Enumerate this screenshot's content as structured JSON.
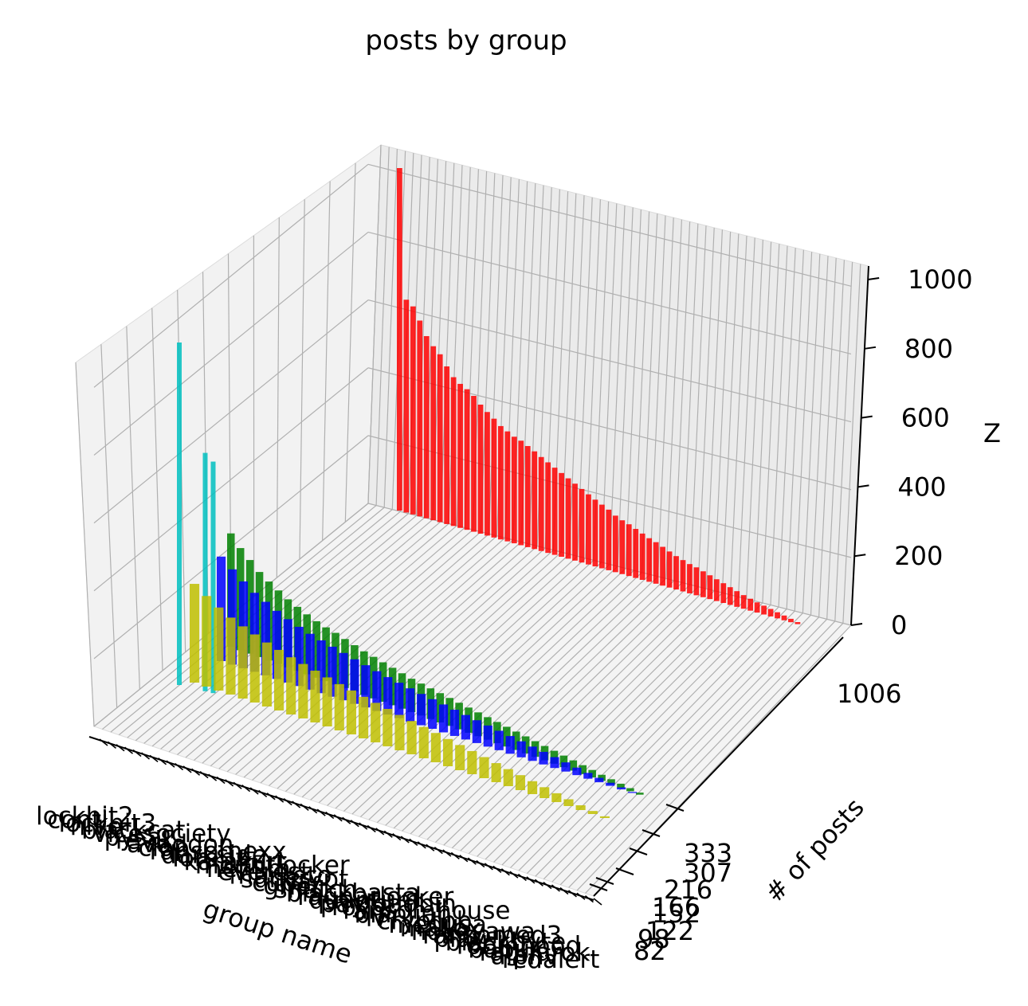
{
  "chart_data": {
    "type": "bar",
    "subtype": "3d-bar",
    "title": "posts by group",
    "xlabel": "group name",
    "ylabel": "# of posts",
    "zlabel": "Z",
    "zlim": [
      0,
      1060
    ],
    "z_ticks": [
      "0",
      "200",
      "400",
      "600",
      "800",
      "1000"
    ],
    "y_tick_labels_visible": [
      "1006",
      "333",
      "307",
      "216",
      "166",
      "152",
      "122",
      "98",
      "82"
    ],
    "x_tick_labels_visible": [
      "lockbit2",
      "conti",
      "lockbit3",
      "hive",
      "blackcat",
      "vicesociety",
      "pysa",
      "revil",
      "avaddon",
      "clop",
      "ransomexx",
      "darkside",
      "lorenz",
      "karakurt",
      "mountlocker",
      "nefilim",
      "everest",
      "marketo",
      "suncrypt",
      "cuba",
      "grief",
      "snatch",
      "blackbasta",
      "ragnarlocker",
      "quantum",
      "payloadbin",
      "royal",
      "ransomhouse",
      "bianlian",
      "lv",
      "cryptbb",
      "medusa",
      "mallox",
      "nokoyawa",
      "ransomed3",
      "play",
      "blackbyte",
      "robinhood",
      "babuk",
      "ragnarok",
      "alphv",
      "redalert"
    ],
    "grid": true,
    "series": [
      {
        "color": "#ff0000",
        "note_row": "back row",
        "values": [
          1006,
          625,
          611,
          575,
          535,
          511,
          493,
          463,
          437,
          423,
          413,
          399,
          379,
          363,
          349,
          333,
          323,
          313,
          307,
          297,
          287,
          276,
          266,
          256,
          246,
          236,
          226,
          216,
          206,
          196,
          187,
          178,
          166,
          158,
          152,
          144,
          136,
          128,
          122,
          114,
          106,
          98,
          92,
          86,
          82,
          76,
          70,
          64,
          58,
          52,
          46,
          40,
          35,
          30,
          26,
          22,
          18,
          14,
          10,
          6
        ]
      },
      {
        "color": "#008000",
        "values": [
          333,
          300,
          275,
          250,
          232,
          216,
          200,
          188,
          176,
          166,
          158,
          152,
          144,
          136,
          128,
          122,
          116,
          110,
          104,
          98,
          94,
          90,
          86,
          82,
          78,
          74,
          70,
          66,
          62,
          58,
          54,
          50,
          46,
          42,
          38,
          34,
          30,
          26,
          22,
          18,
          15,
          12,
          9,
          6
        ]
      },
      {
        "color": "#0000ff",
        "values": [
          307,
          280,
          255,
          232,
          216,
          200,
          186,
          174,
          164,
          155,
          147,
          139,
          131,
          124,
          117,
          110,
          104,
          98,
          92,
          87,
          82,
          77,
          72,
          67,
          62,
          57,
          52,
          47,
          42,
          37,
          32,
          27,
          22,
          17,
          13,
          9,
          6,
          3
        ]
      },
      {
        "color": "#00c0c0",
        "values": [
          1006,
          700,
          680
        ]
      },
      {
        "color": "#bfbf00",
        "note_row": "front row",
        "values": [
          290,
          266,
          244,
          226,
          212,
          200,
          188,
          178,
          168,
          160,
          152,
          144,
          136,
          129,
          122,
          116,
          110,
          104,
          98,
          92,
          86,
          80,
          74,
          68,
          62,
          56,
          50,
          44,
          38,
          32,
          26,
          20,
          14,
          9,
          5
        ]
      }
    ]
  }
}
